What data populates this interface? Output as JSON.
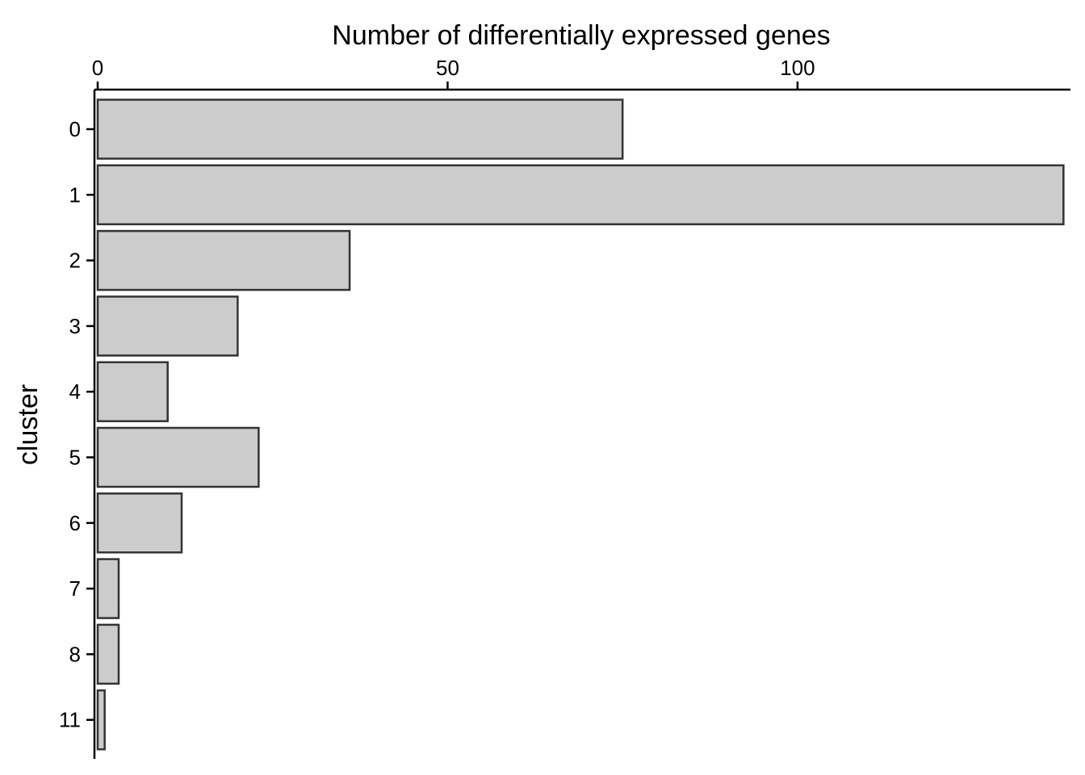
{
  "chart_data": {
    "type": "bar",
    "orientation": "horizontal",
    "xlabel": "Number of differentially expressed genes",
    "xlabel_position": "top",
    "ylabel": "cluster",
    "categories": [
      "0",
      "1",
      "2",
      "3",
      "4",
      "5",
      "6",
      "7",
      "8",
      "11"
    ],
    "values": [
      75,
      138,
      36,
      20,
      10,
      23,
      12,
      3,
      3,
      1
    ],
    "xlim": [
      0,
      139
    ],
    "x_ticks": [
      0,
      50,
      100
    ],
    "x_tick_labels": [
      "0",
      "50",
      "100"
    ],
    "grid": false,
    "legend": "none",
    "colors": {
      "bar_fill": "#cccccc",
      "bar_stroke": "#333333",
      "axis": "#000000"
    }
  }
}
